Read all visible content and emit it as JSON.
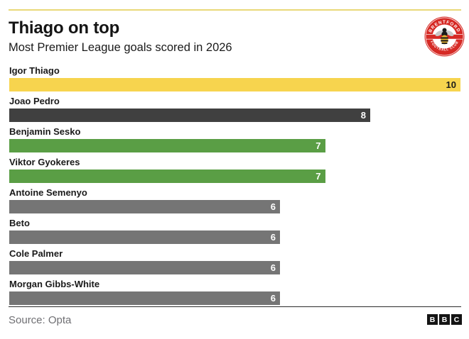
{
  "header": {
    "title": "Thiago on top",
    "subtitle": "Most Premier League goals scored in 2026"
  },
  "badge": {
    "club": "Brentford",
    "top_text": "BRENTFORD",
    "bottom_text": "FOOTBALL CLUB"
  },
  "chart_data": {
    "type": "bar",
    "orientation": "horizontal",
    "title": "Thiago on top",
    "subtitle": "Most Premier League goals scored in 2026",
    "categories": [
      "Igor Thiago",
      "Joao Pedro",
      "Benjamin Sesko",
      "Viktor Gyokeres",
      "Antoine Semenyo",
      "Beto",
      "Cole Palmer",
      "Morgan Gibbs-White"
    ],
    "values": [
      10,
      8,
      7,
      7,
      6,
      6,
      6,
      6
    ],
    "xlim": [
      0,
      10
    ],
    "grid": "off",
    "value_labels": "inside-end",
    "bar_colors": [
      "#F7D44E",
      "#404040",
      "#5A9E45",
      "#5A9E45",
      "#757575",
      "#757575",
      "#757575",
      "#757575"
    ],
    "value_label_colors": [
      "#1A1A1A",
      "#FFFFFF",
      "#FFFFFF",
      "#FFFFFF",
      "#FFFFFF",
      "#FFFFFF",
      "#FFFFFF",
      "#FFFFFF"
    ]
  },
  "footer": {
    "source": "Source: Opta",
    "logo_letters": [
      "B",
      "B",
      "C"
    ]
  },
  "colors": {
    "accent_yellow": "#F7D44E",
    "dark_bar": "#404040",
    "green_bar": "#5A9E45",
    "gray_bar": "#757575",
    "top_rule": "#E9D878",
    "badge_red": "#D62A25",
    "text": "#141414",
    "source_text": "#6F6F73"
  }
}
